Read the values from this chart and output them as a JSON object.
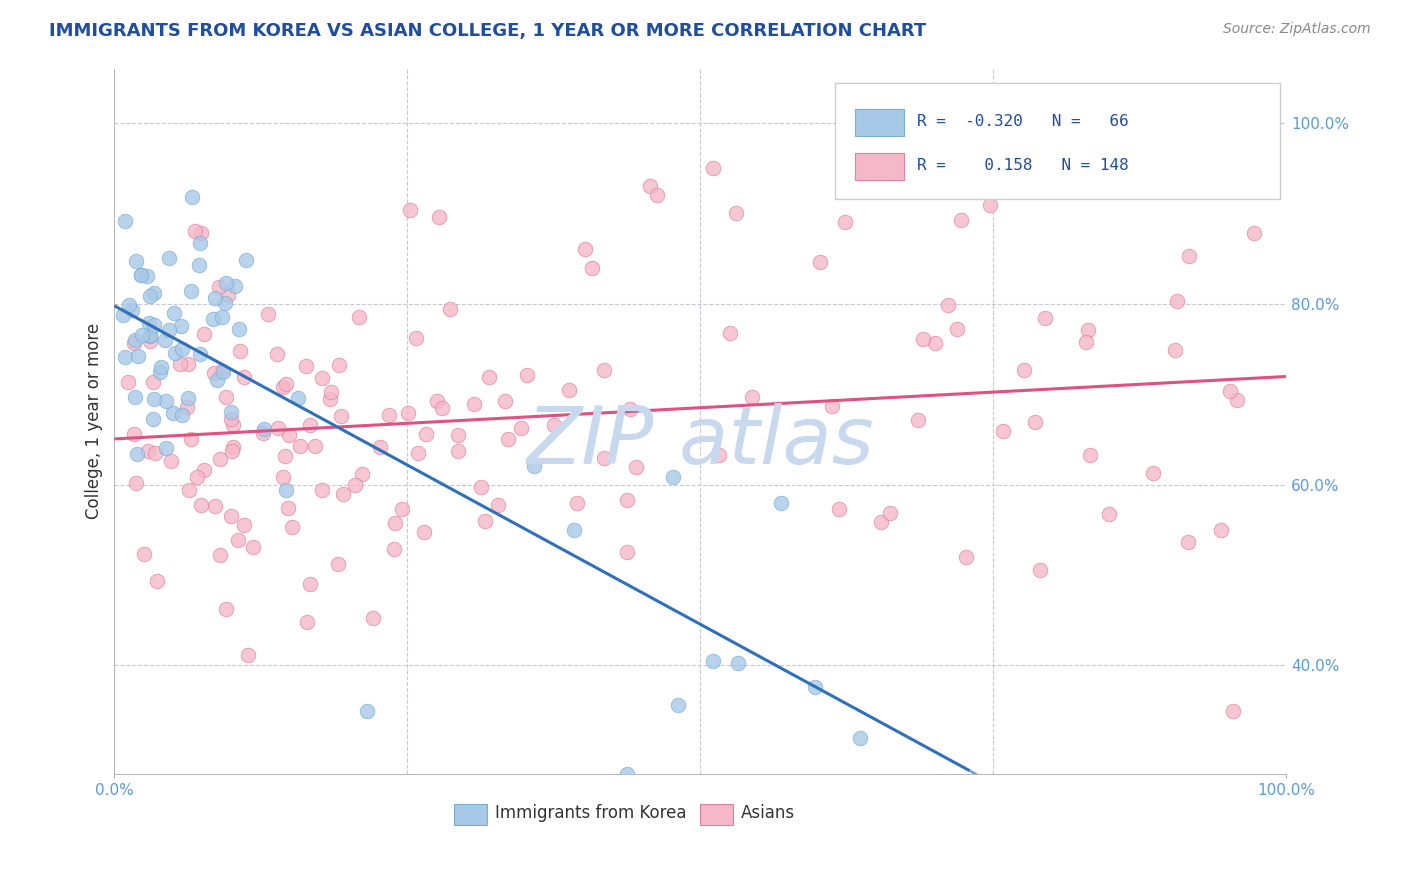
{
  "title": "IMMIGRANTS FROM KOREA VS ASIAN COLLEGE, 1 YEAR OR MORE CORRELATION CHART",
  "source_text": "Source: ZipAtlas.com",
  "ylabel": "College, 1 year or more",
  "xmin": 0.0,
  "xmax": 1.0,
  "ymin": 0.28,
  "ymax": 1.06,
  "y_tick_positions": [
    0.4,
    0.6,
    0.8,
    1.0
  ],
  "color_blue": "#A8C8E8",
  "color_blue_edge": "#7AAED0",
  "color_pink": "#F4B8C8",
  "color_pink_edge": "#E080A0",
  "color_blue_line": "#3070B8",
  "color_pink_line": "#E05080",
  "title_color": "#1F4E9E",
  "axis_color": "#5B9BD5",
  "grid_color": "#C8C8D8",
  "watermark_color": "#C8D8EE"
}
